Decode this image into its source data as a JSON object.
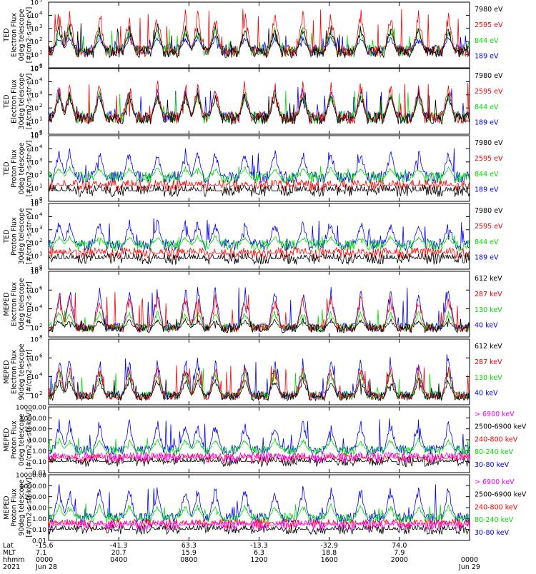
{
  "chart_data": {
    "type": "line",
    "title": "",
    "time_axis": {
      "rows": [
        {
          "label": "Lat",
          "values": [
            "-15.6",
            "-41.3",
            "63.3",
            "-13.3",
            "-32.9",
            "74.0",
            ""
          ]
        },
        {
          "label": "MLT",
          "values": [
            "7.1",
            "20.7",
            "15.9",
            "6.3",
            "18.8",
            "7.9",
            ""
          ]
        },
        {
          "label": "hhmm",
          "values": [
            "0000",
            "0400",
            "0800",
            "1200",
            "1600",
            "2000",
            "0000"
          ]
        },
        {
          "label": "2021",
          "values": [
            "Jun 28",
            "",
            "",
            "",
            "",
            "",
            "Jun 29"
          ]
        }
      ],
      "hours": [
        0,
        4,
        8,
        12,
        16,
        20,
        24
      ]
    },
    "panels": [
      {
        "ylabel": [
          "TED",
          "Electron Flux",
          "0deg telescope",
          "[#/cm2-s-str-eV]"
        ],
        "ylog": [
          0,
          5
        ],
        "ytick_labels": [
          "10^0",
          "10^1",
          "10^2",
          "10^3",
          "10^4",
          "10^5"
        ],
        "legend": [
          {
            "label": "7980 eV",
            "color": "#000000"
          },
          {
            "label": "2595 eV",
            "color": "#ff0000"
          },
          {
            "label": "844 eV",
            "color": "#00dd00"
          },
          {
            "label": "189 eV",
            "color": "#0000ff"
          }
        ],
        "series_levels": {
          "base": 1.3,
          "peaks": [
            3.4,
            4.6,
            3.2,
            2.5
          ]
        }
      },
      {
        "ylabel": [
          "TED",
          "Electron Flux",
          "30deg telescope",
          "[#/cm2-s-str-eV]"
        ],
        "ylog": [
          0,
          5
        ],
        "ytick_labels": [
          "10^0",
          "10^1",
          "10^2",
          "10^3",
          "10^4",
          "10^5"
        ],
        "legend": [
          {
            "label": "7980 eV",
            "color": "#000000"
          },
          {
            "label": "2595 eV",
            "color": "#ff0000"
          },
          {
            "label": "844 eV",
            "color": "#00dd00"
          },
          {
            "label": "189 eV",
            "color": "#0000ff"
          }
        ],
        "series_levels": {
          "base": 1.3,
          "peaks": [
            3.3,
            4.2,
            3.4,
            3.6
          ]
        }
      },
      {
        "ylabel": [
          "TED",
          "Proton Flux",
          "0deg telescope",
          "[#/cm2-s-str-eV]"
        ],
        "ylog": [
          0,
          5
        ],
        "ytick_labels": [
          "10^0",
          "10^1",
          "10^2",
          "10^3",
          "10^4",
          "10^5"
        ],
        "legend": [
          {
            "label": "7980 eV",
            "color": "#000000"
          },
          {
            "label": "2595 eV",
            "color": "#ff0000"
          },
          {
            "label": "844 eV",
            "color": "#00dd00"
          },
          {
            "label": "189 eV",
            "color": "#0000ff"
          }
        ],
        "series_levels": {
          "base": 1.8,
          "peaks": [
            0.8,
            1.2,
            2.7,
            4.1
          ]
        }
      },
      {
        "ylabel": [
          "TED",
          "Proton Flux",
          "30deg telescope",
          "[#/cm2-s-str-eV]"
        ],
        "ylog": [
          0,
          5
        ],
        "ytick_labels": [
          "10^0",
          "10^1",
          "10^2",
          "10^3",
          "10^4",
          "10^5"
        ],
        "legend": [
          {
            "label": "7980 eV",
            "color": "#000000"
          },
          {
            "label": "2595 eV",
            "color": "#ff0000"
          },
          {
            "label": "844 eV",
            "color": "#00dd00"
          },
          {
            "label": "189 eV",
            "color": "#0000ff"
          }
        ],
        "series_levels": {
          "base": 1.8,
          "peaks": [
            0.8,
            1.2,
            2.6,
            3.9
          ]
        }
      },
      {
        "ylabel": [
          "MEPED",
          "Electron Flux",
          "0deg telescope",
          "[#/cm2-s-str]"
        ],
        "ylog": [
          1,
          8
        ],
        "ytick_labels": [
          "10^2",
          "10^4",
          "10^6",
          "10^8"
        ],
        "legend": [
          {
            "label": "612 keV",
            "color": "#000000"
          },
          {
            "label": "287 keV",
            "color": "#ff0000"
          },
          {
            "label": "130 keV",
            "color": "#00dd00"
          },
          {
            "label": "40 keV",
            "color": "#0000ff"
          }
        ],
        "series_levels": {
          "base": 2.0,
          "peaks": [
            3.0,
            5.8,
            4.0,
            6.6
          ]
        }
      },
      {
        "ylabel": [
          "MEPED",
          "Electron Flux",
          "90deg telescope",
          "[#/cm2-s-str]"
        ],
        "ylog": [
          1,
          8
        ],
        "ytick_labels": [
          "10^2",
          "10^4",
          "10^6",
          "10^8"
        ],
        "legend": [
          {
            "label": "612 keV",
            "color": "#000000"
          },
          {
            "label": "287 keV",
            "color": "#ff0000"
          },
          {
            "label": "130 keV",
            "color": "#00dd00"
          },
          {
            "label": "40 keV",
            "color": "#0000ff"
          }
        ],
        "series_levels": {
          "base": 2.0,
          "peaks": [
            4.0,
            5.4,
            5.0,
            6.4
          ]
        }
      },
      {
        "ylabel": [
          "MEPED",
          "Proton Flux",
          "0deg telescope",
          "[#/cm2-s-str-keV]"
        ],
        "ylog": [
          -2,
          4
        ],
        "ytick_labels": [
          "0.01",
          "0.10",
          "1.00",
          "10.00",
          "100.00",
          "1000.00",
          "10000.00"
        ],
        "legend": [
          {
            "label": "> 6900 keV",
            "color": "#ff00ff"
          },
          {
            "label": "2500-6900 keV",
            "color": "#000000"
          },
          {
            "label": "240-800 keV",
            "color": "#ff0000"
          },
          {
            "label": "80-240 keV",
            "color": "#00dd00"
          },
          {
            "label": "30-80 keV",
            "color": "#0000ff"
          }
        ],
        "series_levels": {
          "base": 0.0,
          "peaks": [
            -0.6,
            -1.0,
            -0.7,
            1.2,
            3.0
          ]
        }
      },
      {
        "ylabel": [
          "MEPED",
          "Proton Flux",
          "90deg telescope",
          "[#/cm2-s-str-keV]"
        ],
        "ylog": [
          -2,
          4
        ],
        "ytick_labels": [
          "0.01",
          "0.10",
          "1.00",
          "10.00",
          "100.00",
          "1000.00",
          "10000.00"
        ],
        "legend": [
          {
            "label": "> 6900 keV",
            "color": "#ff00ff"
          },
          {
            "label": "2500-6900 keV",
            "color": "#000000"
          },
          {
            "label": "240-800 keV",
            "color": "#ff0000"
          },
          {
            "label": "80-240 keV",
            "color": "#00dd00"
          },
          {
            "label": "30-80 keV",
            "color": "#0000ff"
          }
        ],
        "series_levels": {
          "base": 0.0,
          "peaks": [
            -0.6,
            -1.0,
            -0.5,
            1.4,
            3.2
          ]
        }
      }
    ],
    "orbit_event_hours": [
      0.6,
      1.2,
      2.9,
      4.6,
      6.2,
      7.8,
      8.5,
      9.5,
      11.2,
      12.9,
      14.5,
      16.1,
      17.8,
      19.5,
      21.1,
      22.8
    ]
  }
}
